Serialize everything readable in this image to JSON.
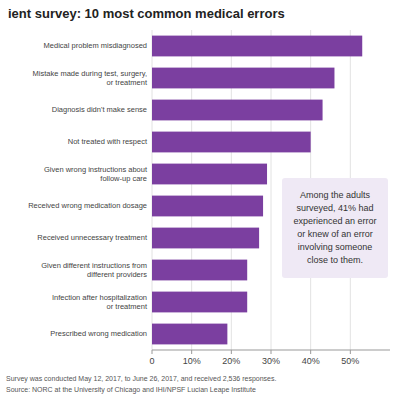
{
  "chart_data": {
    "type": "bar",
    "orientation": "horizontal",
    "title": "ient survey: 10 most common medical errors",
    "categories": [
      "Medical problem misdiagnosed",
      "Mistake made during test, surgery,\nor treatment",
      "Diagnosis didn't make sense",
      "Not treated with respect",
      "Given wrong instructions about\nfollow-up care",
      "Received wrong medication dosage",
      "Received unnecessary treatment",
      "Given different instructions from\ndifferent providers",
      "Infection after hospitalization\nor treatment",
      "Prescribed wrong medication"
    ],
    "values": [
      53,
      46,
      43,
      40,
      29,
      28,
      27,
      24,
      24,
      19
    ],
    "color": "#7b3fa0",
    "xlim": [
      0,
      60
    ],
    "xticks": [
      0,
      {
        "value": 10,
        "label": "10%"
      },
      {
        "value": 20,
        "label": "20%"
      },
      {
        "value": 30,
        "label": "30%"
      },
      {
        "value": 40,
        "label": "40%"
      },
      {
        "value": 50,
        "label": "50%"
      }
    ],
    "grid": true,
    "annotation": "Among the adults\nsurveyed, 41% had\nexperienced an error\nor knew of an error\ninvolving someone\nclose to them.",
    "footnotes": [
      "Survey was conducted May 12, 2017, to June 26, 2017, and received 2,536 responses.",
      "Source: NORC at the University of Chicago and IHI/NPSF Lucian Leape Institute"
    ]
  }
}
